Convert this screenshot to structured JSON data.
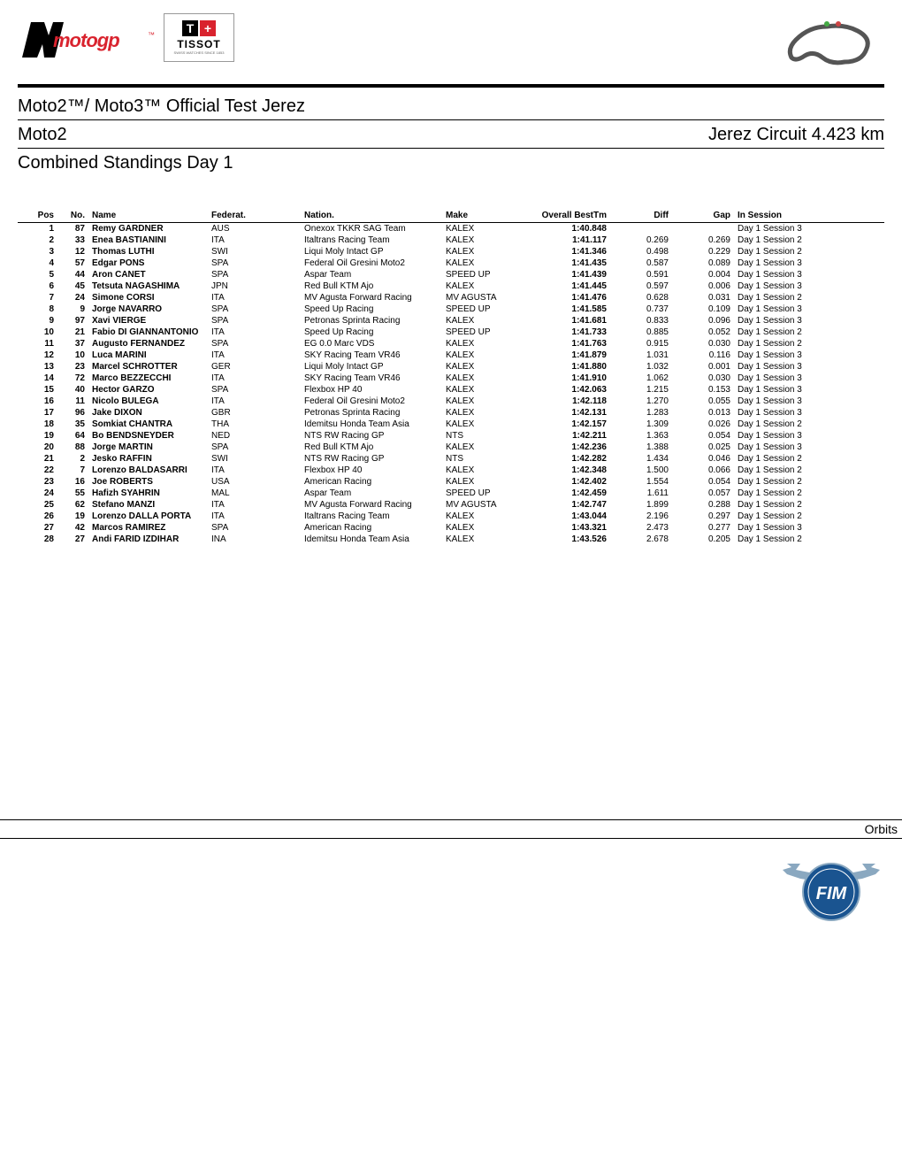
{
  "header": {
    "logos": {
      "motogp_text": "motogp",
      "tissot_name": "TISSOT",
      "tissot_sub": "SWISS WATCHES SINCE 1853"
    },
    "title_main": "Moto2™/ Moto3™ Official Test Jerez",
    "title_left": "Moto2",
    "title_right": "Jerez Circuit 4.423 km",
    "title_sub": "Combined Standings Day 1"
  },
  "table": {
    "columns": [
      "Pos",
      "No.",
      "Name",
      "Federat.",
      "Nation.",
      "Make",
      "Overall BestTm",
      "Diff",
      "Gap",
      "In Session"
    ],
    "rows": [
      [
        "1",
        "87",
        "Remy GARDNER",
        "AUS",
        "Onexox TKKR SAG Team",
        "KALEX",
        "1:40.848",
        "",
        "",
        "Day 1 Session 3"
      ],
      [
        "2",
        "33",
        "Enea BASTIANINI",
        "ITA",
        "Italtrans Racing Team",
        "KALEX",
        "1:41.117",
        "0.269",
        "0.269",
        "Day 1 Session 2"
      ],
      [
        "3",
        "12",
        "Thomas LUTHI",
        "SWI",
        "Liqui Moly Intact GP",
        "KALEX",
        "1:41.346",
        "0.498",
        "0.229",
        "Day 1 Session 2"
      ],
      [
        "4",
        "57",
        "Edgar PONS",
        "SPA",
        "Federal Oil Gresini Moto2",
        "KALEX",
        "1:41.435",
        "0.587",
        "0.089",
        "Day 1 Session 3"
      ],
      [
        "5",
        "44",
        "Aron CANET",
        "SPA",
        "Aspar Team",
        "SPEED UP",
        "1:41.439",
        "0.591",
        "0.004",
        "Day 1 Session 3"
      ],
      [
        "6",
        "45",
        "Tetsuta NAGASHIMA",
        "JPN",
        "Red Bull KTM Ajo",
        "KALEX",
        "1:41.445",
        "0.597",
        "0.006",
        "Day 1 Session 3"
      ],
      [
        "7",
        "24",
        "Simone CORSI",
        "ITA",
        "MV Agusta  Forward Racing",
        "MV AGUSTA",
        "1:41.476",
        "0.628",
        "0.031",
        "Day 1 Session 2"
      ],
      [
        "8",
        "9",
        "Jorge NAVARRO",
        "SPA",
        "Speed Up Racing",
        "SPEED UP",
        "1:41.585",
        "0.737",
        "0.109",
        "Day 1 Session 3"
      ],
      [
        "9",
        "97",
        "Xavi VIERGE",
        "SPA",
        "Petronas Sprinta Racing",
        "KALEX",
        "1:41.681",
        "0.833",
        "0.096",
        "Day 1 Session 3"
      ],
      [
        "10",
        "21",
        "Fabio DI GIANNANTONIO",
        "ITA",
        "Speed Up Racing",
        "SPEED UP",
        "1:41.733",
        "0.885",
        "0.052",
        "Day 1 Session 2"
      ],
      [
        "11",
        "37",
        "Augusto FERNANDEZ",
        "SPA",
        "EG 0.0 Marc VDS",
        "KALEX",
        "1:41.763",
        "0.915",
        "0.030",
        "Day 1 Session 2"
      ],
      [
        "12",
        "10",
        "Luca MARINI",
        "ITA",
        "SKY Racing Team VR46",
        "KALEX",
        "1:41.879",
        "1.031",
        "0.116",
        "Day 1 Session 3"
      ],
      [
        "13",
        "23",
        "Marcel SCHROTTER",
        "GER",
        "Liqui Moly Intact GP",
        "KALEX",
        "1:41.880",
        "1.032",
        "0.001",
        "Day 1 Session 3"
      ],
      [
        "14",
        "72",
        "Marco BEZZECCHI",
        "ITA",
        "SKY Racing Team VR46",
        "KALEX",
        "1:41.910",
        "1.062",
        "0.030",
        "Day 1 Session 3"
      ],
      [
        "15",
        "40",
        "Hector GARZO",
        "SPA",
        "Flexbox HP 40",
        "KALEX",
        "1:42.063",
        "1.215",
        "0.153",
        "Day 1 Session 3"
      ],
      [
        "16",
        "11",
        "Nicolo BULEGA",
        "ITA",
        "Federal Oil Gresini Moto2",
        "KALEX",
        "1:42.118",
        "1.270",
        "0.055",
        "Day 1 Session 3"
      ],
      [
        "17",
        "96",
        "Jake DIXON",
        "GBR",
        "Petronas Sprinta Racing",
        "KALEX",
        "1:42.131",
        "1.283",
        "0.013",
        "Day 1 Session 3"
      ],
      [
        "18",
        "35",
        "Somkiat CHANTRA",
        "THA",
        "Idemitsu Honda Team Asia",
        "KALEX",
        "1:42.157",
        "1.309",
        "0.026",
        "Day 1 Session 2"
      ],
      [
        "19",
        "64",
        "Bo BENDSNEYDER",
        "NED",
        "NTS RW Racing GP",
        "NTS",
        "1:42.211",
        "1.363",
        "0.054",
        "Day 1 Session 3"
      ],
      [
        "20",
        "88",
        "Jorge MARTIN",
        "SPA",
        "Red Bull KTM Ajo",
        "KALEX",
        "1:42.236",
        "1.388",
        "0.025",
        "Day 1 Session 3"
      ],
      [
        "21",
        "2",
        "Jesko RAFFIN",
        "SWI",
        "NTS RW Racing GP",
        "NTS",
        "1:42.282",
        "1.434",
        "0.046",
        "Day 1 Session 2"
      ],
      [
        "22",
        "7",
        "Lorenzo BALDASARRI",
        "ITA",
        "Flexbox HP 40",
        "KALEX",
        "1:42.348",
        "1.500",
        "0.066",
        "Day 1 Session 2"
      ],
      [
        "23",
        "16",
        "Joe ROBERTS",
        "USA",
        "American Racing",
        "KALEX",
        "1:42.402",
        "1.554",
        "0.054",
        "Day 1 Session 2"
      ],
      [
        "24",
        "55",
        "Hafizh SYAHRIN",
        "MAL",
        "Aspar Team",
        "SPEED UP",
        "1:42.459",
        "1.611",
        "0.057",
        "Day 1 Session 2"
      ],
      [
        "25",
        "62",
        "Stefano MANZI",
        "ITA",
        "MV Agusta  Forward Racing",
        "MV AGUSTA",
        "1:42.747",
        "1.899",
        "0.288",
        "Day 1 Session 2"
      ],
      [
        "26",
        "19",
        "Lorenzo DALLA PORTA",
        "ITA",
        "Italtrans Racing Team",
        "KALEX",
        "1:43.044",
        "2.196",
        "0.297",
        "Day 1 Session 2"
      ],
      [
        "27",
        "42",
        "Marcos RAMIREZ",
        "SPA",
        "American Racing",
        "KALEX",
        "1:43.321",
        "2.473",
        "0.277",
        "Day 1 Session 3"
      ],
      [
        "28",
        "27",
        "Andi FARID IZDIHAR",
        "INA",
        "Idemitsu Honda Team Asia",
        "KALEX",
        "1:43.526",
        "2.678",
        "0.205",
        "Day 1 Session 2"
      ]
    ],
    "style": {
      "header_font_size": 10,
      "row_font_size": 10,
      "bold_columns": [
        0,
        1,
        2,
        6
      ],
      "right_align_columns": [
        0,
        1,
        6,
        7,
        8
      ],
      "header_underline_color": "#000000",
      "body_font_weight_normal": 400,
      "body_font_weight_bold": 700
    }
  },
  "footer": {
    "right_text": "Orbits"
  },
  "colors": {
    "accent_red": "#d9232e",
    "black": "#000000",
    "fim_blue": "#1a5490",
    "fim_wing": "#8aa8c0"
  }
}
